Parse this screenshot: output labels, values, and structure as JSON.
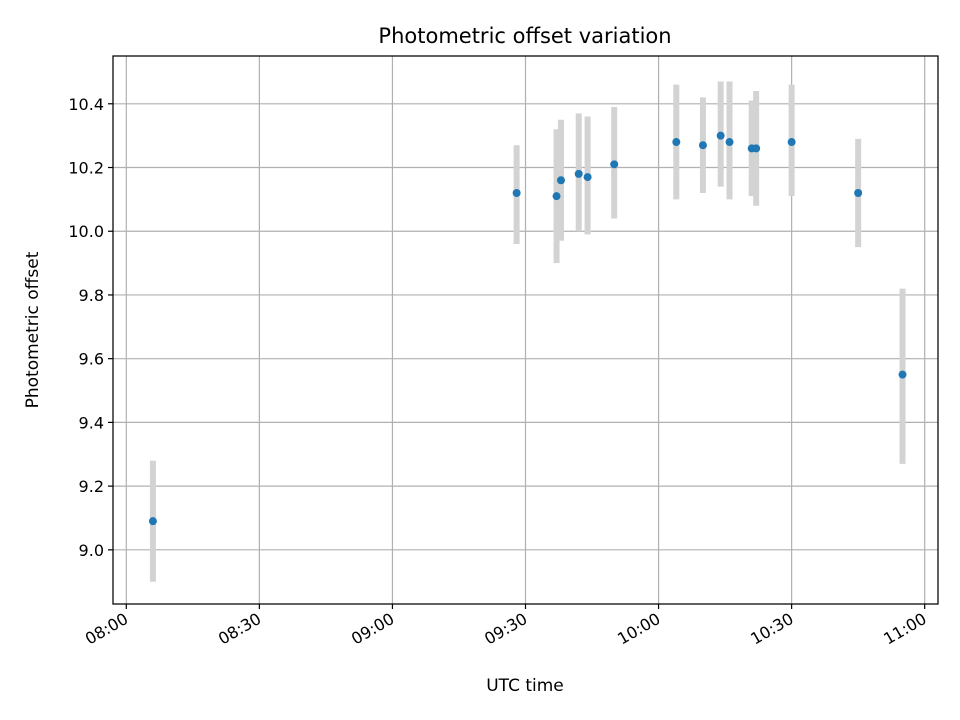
{
  "chart_data": {
    "type": "scatter",
    "title": "Photometric offset variation",
    "xlabel": "UTC time",
    "ylabel": "Photometric offset",
    "x_is_time": true,
    "xlim": [
      "07:57",
      "11:03"
    ],
    "ylim": [
      8.83,
      10.55
    ],
    "grid": true,
    "xticks": [
      "08:00",
      "08:30",
      "09:00",
      "09:30",
      "10:00",
      "10:30",
      "11:00"
    ],
    "yticks": [
      9.0,
      9.2,
      9.4,
      9.6,
      9.8,
      10.0,
      10.2,
      10.4
    ],
    "ytick_labels": [
      "9.0",
      "9.2",
      "9.4",
      "9.6",
      "9.8",
      "10.0",
      "10.2",
      "10.4"
    ],
    "marker_color": "#1f77b4",
    "errorbar_color": "#d3d3d3",
    "points": [
      {
        "x": "08:06",
        "y": 9.09,
        "ylow": 8.9,
        "yhigh": 9.28
      },
      {
        "x": "09:28",
        "y": 10.12,
        "ylow": 9.96,
        "yhigh": 10.27
      },
      {
        "x": "09:37",
        "y": 10.11,
        "ylow": 9.9,
        "yhigh": 10.32
      },
      {
        "x": "09:38",
        "y": 10.16,
        "ylow": 9.97,
        "yhigh": 10.35
      },
      {
        "x": "09:42",
        "y": 10.18,
        "ylow": 10.0,
        "yhigh": 10.37
      },
      {
        "x": "09:44",
        "y": 10.17,
        "ylow": 9.99,
        "yhigh": 10.36
      },
      {
        "x": "09:50",
        "y": 10.21,
        "ylow": 10.04,
        "yhigh": 10.39
      },
      {
        "x": "10:04",
        "y": 10.28,
        "ylow": 10.1,
        "yhigh": 10.46
      },
      {
        "x": "10:10",
        "y": 10.27,
        "ylow": 10.12,
        "yhigh": 10.42
      },
      {
        "x": "10:14",
        "y": 10.3,
        "ylow": 10.14,
        "yhigh": 10.47
      },
      {
        "x": "10:16",
        "y": 10.28,
        "ylow": 10.1,
        "yhigh": 10.47
      },
      {
        "x": "10:21",
        "y": 10.26,
        "ylow": 10.11,
        "yhigh": 10.41
      },
      {
        "x": "10:22",
        "y": 10.26,
        "ylow": 10.08,
        "yhigh": 10.44
      },
      {
        "x": "10:30",
        "y": 10.28,
        "ylow": 10.11,
        "yhigh": 10.46
      },
      {
        "x": "10:45",
        "y": 10.12,
        "ylow": 9.95,
        "yhigh": 10.29
      },
      {
        "x": "10:55",
        "y": 9.55,
        "ylow": 9.27,
        "yhigh": 9.82
      }
    ]
  }
}
